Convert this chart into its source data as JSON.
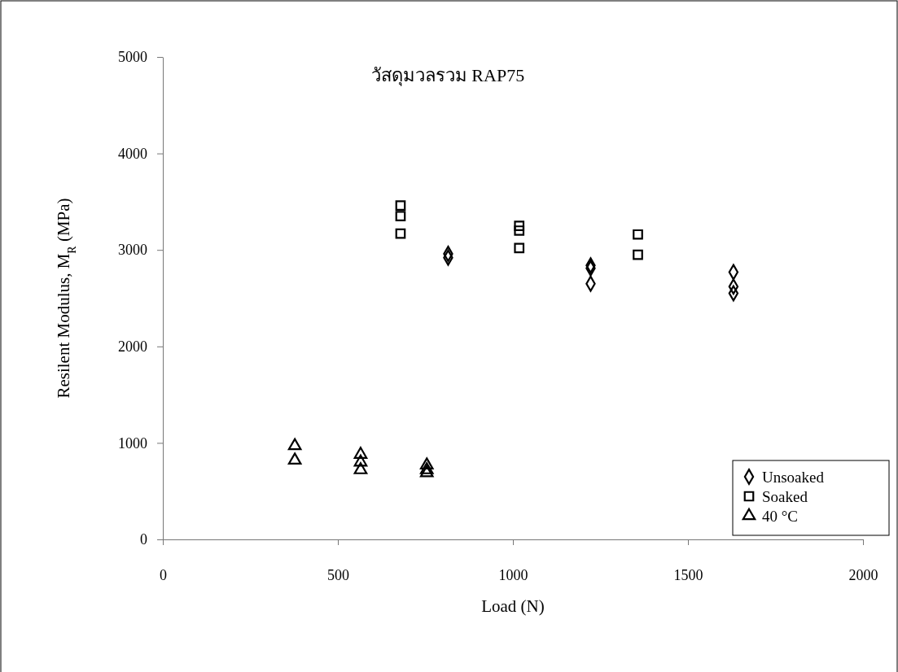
{
  "chart_data": {
    "type": "scatter",
    "title": "วัสดุมวลรวม RAP75",
    "xlabel": "Load (N)",
    "ylabel": "Resilent Modulus, M$_{R}$ (MPa)",
    "xlim": [
      0,
      2000
    ],
    "xticks": [
      0,
      500,
      1000,
      1500,
      2000
    ],
    "ylim": [
      0,
      5000
    ],
    "yticks": [
      0,
      1000,
      2000,
      3000,
      4000,
      5000
    ],
    "grid": false,
    "legend": "bottom right",
    "series": [
      {
        "name": "Unsoaked",
        "color": "#000000",
        "marker": "diamond",
        "x": [
          815,
          815,
          1222,
          1222,
          1222,
          1630,
          1630,
          1630
        ],
        "values": [
          2960,
          2920,
          2840,
          2810,
          2650,
          2770,
          2620,
          2550
        ]
      },
      {
        "name": "Soaked",
        "color": "#000000",
        "marker": "square",
        "x": [
          679,
          679,
          679,
          1018,
          1018,
          1018,
          1357,
          1357
        ],
        "values": [
          3460,
          3350,
          3170,
          3250,
          3200,
          3020,
          3160,
          2950
        ]
      },
      {
        "name": "40 °C",
        "color": "#000000",
        "marker": "triangle",
        "x": [
          377,
          377,
          565,
          565,
          565,
          754,
          754,
          754
        ],
        "values": [
          970,
          820,
          880,
          800,
          720,
          770,
          720,
          690
        ]
      }
    ]
  }
}
